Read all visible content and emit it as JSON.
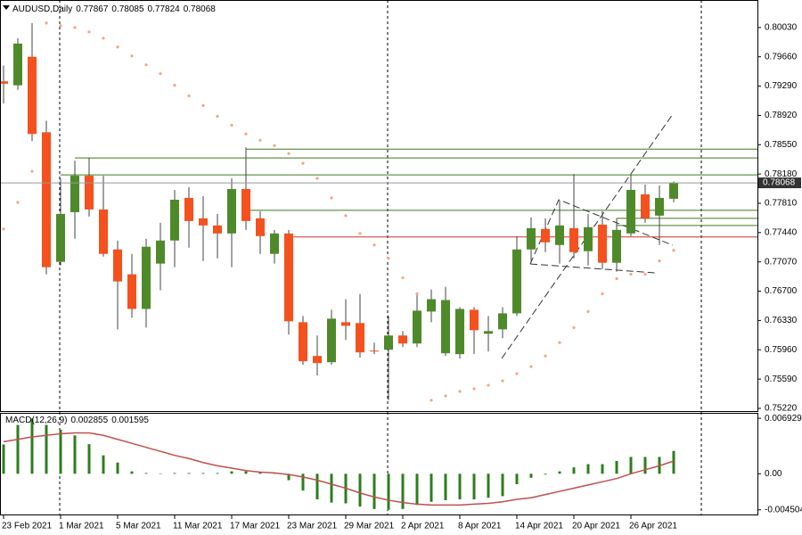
{
  "chart_data": {
    "type": "candlestick",
    "title": "AUDUSD,Daily",
    "categories": [
      "23 Feb 2021",
      null,
      null,
      null,
      "1 Mar 2021",
      null,
      null,
      null,
      "5 Mar 2021",
      null,
      null,
      null,
      "11 Mar 2021",
      null,
      null,
      null,
      "17 Mar 2021",
      null,
      null,
      null,
      "23 Mar 2021",
      null,
      null,
      null,
      "29 Mar 2021",
      null,
      null,
      null,
      "2 Apr 2021",
      null,
      null,
      null,
      "8 Apr 2021",
      null,
      null,
      null,
      "14 Apr 2021",
      null,
      null,
      null,
      "20 Apr 2021",
      null,
      null,
      null,
      "26 Apr 2021",
      null,
      null,
      null
    ],
    "open": [
      0.7935,
      0.793,
      0.7966,
      0.78707,
      0.7707,
      0.77698,
      0.78158,
      0.77732,
      0.77227,
      0.76913,
      0.76476,
      0.77048,
      0.7734,
      0.77878,
      0.7762,
      0.7753,
      0.77429,
      0.7799,
      0.7762,
      0.77171,
      0.77429,
      0.76308,
      0.75882,
      0.75803,
      0.76308,
      0.76297,
      0.75949,
      0.7596,
      0.7614,
      0.76039,
      0.76443,
      0.75916,
      0.75905,
      0.76465,
      0.76162,
      0.76218,
      0.7642,
      0.77227,
      0.77485,
      0.77283,
      0.77496,
      0.77205,
      0.77541,
      0.77059,
      0.77429,
      0.77923,
      0.77654,
      0.77867
    ],
    "high": [
      0.7955,
      0.79894,
      0.80086,
      0.78853,
      0.78124,
      0.78348,
      0.78382,
      0.78158,
      0.7734,
      0.77171,
      0.77362,
      0.77564,
      0.77979,
      0.78012,
      0.779,
      0.77676,
      0.78124,
      0.78517,
      0.7771,
      0.77474,
      0.77474,
      0.76386,
      0.7614,
      0.76465,
      0.76599,
      0.76666,
      0.7605,
      0.76386,
      0.76196,
      0.76666,
      0.76722,
      0.76756,
      0.76498,
      0.76498,
      0.76386,
      0.76498,
      0.77395,
      0.77631,
      0.7762,
      0.77844,
      0.7818,
      0.77676,
      0.7771,
      0.7762,
      0.78169,
      0.78046,
      0.78034,
      0.78085
    ],
    "low": [
      0.7907,
      0.79243,
      0.78595,
      0.76913,
      0.77025,
      0.77362,
      0.77642,
      0.77137,
      0.76218,
      0.76364,
      0.76241,
      0.76712,
      0.77003,
      0.7725,
      0.77081,
      0.77115,
      0.77003,
      0.77474,
      0.77171,
      0.77048,
      0.76151,
      0.7577,
      0.75636,
      0.7577,
      0.76084,
      0.7586,
      0.75905,
      0.75322,
      0.75994,
      0.75994,
      0.76308,
      0.75882,
      0.75849,
      0.75905,
      0.75938,
      0.76106,
      0.76386,
      0.77059,
      0.77193,
      0.77048,
      0.77115,
      0.77025,
      0.7698,
      0.76947,
      0.77395,
      0.77564,
      0.77283,
      0.77824
    ],
    "close": [
      0.7932,
      0.79827,
      0.78685,
      0.77003,
      0.77676,
      0.78158,
      0.77732,
      0.77171,
      0.76823,
      0.76476,
      0.77261,
      0.7734,
      0.77855,
      0.77586,
      0.7753,
      0.77429,
      0.7799,
      0.77586,
      0.77395,
      0.77429,
      0.76319,
      0.75815,
      0.75792,
      0.76353,
      0.76263,
      0.75927,
      0.75938,
      0.7614,
      0.76039,
      0.76454,
      0.76599,
      0.76588,
      0.76476,
      0.76207,
      0.76196,
      0.7642,
      0.77227,
      0.77496,
      0.77317,
      0.7753,
      0.77193,
      0.77508,
      0.77059,
      0.77474,
      0.77979,
      0.7762,
      0.77878,
      0.78068
    ],
    "up_color": "#4f8a2a",
    "down_color": "#f4511e",
    "sar_values": [
      0.77485,
      0.77822,
      0.78214,
      0.80086,
      0.80052,
      0.8003,
      0.79974,
      0.79895,
      0.79783,
      0.79671,
      0.79559,
      0.79447,
      0.79301,
      0.79167,
      0.79044,
      0.78909,
      0.78797,
      0.78685,
      0.78606,
      0.78539,
      0.78438,
      0.78315,
      0.78124,
      0.77878,
      0.77654,
      0.77429,
      0.77284,
      0.77115,
      0.76869,
      0.76667,
      0.75322,
      0.75378,
      0.75434,
      0.75468,
      0.75512,
      0.75568,
      0.75658,
      0.75748,
      0.75882,
      0.7605,
      0.76241,
      0.76443,
      0.76667,
      0.76858,
      0.76914,
      0.76914,
      0.77082,
      0.77216
    ],
    "sar_color": "#f4a582",
    "levels": [
      {
        "value": 0.78494,
        "color": "#3d7a1c"
      },
      {
        "value": 0.78382,
        "color": "#3d7a1c"
      },
      {
        "value": 0.78169,
        "color": "#3d7a1c"
      },
      {
        "value": 0.77721,
        "color": "#3d7a1c"
      },
      {
        "value": 0.7762,
        "color": "#3d7a1c"
      },
      {
        "value": 0.7753,
        "color": "#3d7a1c"
      },
      {
        "value": 0.77384,
        "color": "#d32f2f"
      }
    ],
    "ylim": [
      0.75186,
      0.80366
    ],
    "yticks": [
      {
        "value": 0.8003,
        "label": "0.80030"
      },
      {
        "value": 0.7966,
        "label": "0.79660"
      },
      {
        "value": 0.7929,
        "label": "0.79290"
      },
      {
        "value": 0.7892,
        "label": "0.78920"
      },
      {
        "value": 0.7855,
        "label": "0.78550"
      },
      {
        "value": 0.7818,
        "label": "0.78180"
      },
      {
        "value": 0.7781,
        "label": "0.77810"
      },
      {
        "value": 0.7744,
        "label": "0.77440"
      },
      {
        "value": 0.7707,
        "label": "0.77070"
      },
      {
        "value": 0.767,
        "label": "0.76700"
      },
      {
        "value": 0.7633,
        "label": "0.76330"
      },
      {
        "value": 0.7596,
        "label": "0.75960"
      },
      {
        "value": 0.7559,
        "label": "0.75590"
      },
      {
        "value": 0.7522,
        "label": "0.75220"
      }
    ],
    "macd": {
      "title": "MACD(12,26,9)",
      "histogram": [
        0.00366,
        0.0061,
        0.0069,
        0.0061,
        0.0055,
        0.0048,
        0.0037,
        0.0023,
        0.0014,
        0.0003,
        0.0001,
        5e-05,
        0.0001,
        0.0001,
        0.0001,
        0.0001,
        0.0003,
        0.0003,
        0.0002,
        0.0001,
        -0.0008,
        -0.0021,
        -0.0032,
        -0.0036,
        -0.0037,
        -0.0041,
        -0.0044,
        -0.0045,
        -0.0044,
        -0.0039,
        -0.0035,
        -0.0033,
        -0.0032,
        -0.0032,
        -0.003,
        -0.0028,
        -0.0013,
        -0.0005,
        -0.0001,
        0.0003,
        0.0008,
        0.0012,
        0.0012,
        0.0016,
        0.0021,
        0.0021,
        0.0021,
        0.002855
      ],
      "signal": [
        0.004,
        0.0043,
        0.0046,
        0.0048,
        0.005,
        0.0051,
        0.0051,
        0.0048,
        0.0043,
        0.0038,
        0.0033,
        0.0028,
        0.0023,
        0.0019,
        0.0014,
        0.001,
        0.0007,
        0.0004,
        0.0002,
        0.0001,
        -0.0001,
        -0.0004,
        -0.0008,
        -0.0013,
        -0.0018,
        -0.0024,
        -0.0029,
        -0.0033,
        -0.0036,
        -0.0038,
        -0.0039,
        -0.0039,
        -0.0039,
        -0.0038,
        -0.0037,
        -0.0035,
        -0.0032,
        -0.003,
        -0.0026,
        -0.0022,
        -0.0018,
        -0.0014,
        -0.001,
        -0.0006,
        0,
        0.0005,
        0.001,
        0.001595
      ],
      "histogram_color": "#2e7d1e",
      "signal_color": "#c0504d",
      "ylim": [
        -0.0052,
        0.0075
      ],
      "yticks": [
        0.006929,
        {
          "value": 0,
          "label": "0.00"
        },
        -0.004504
      ]
    }
  }
}
